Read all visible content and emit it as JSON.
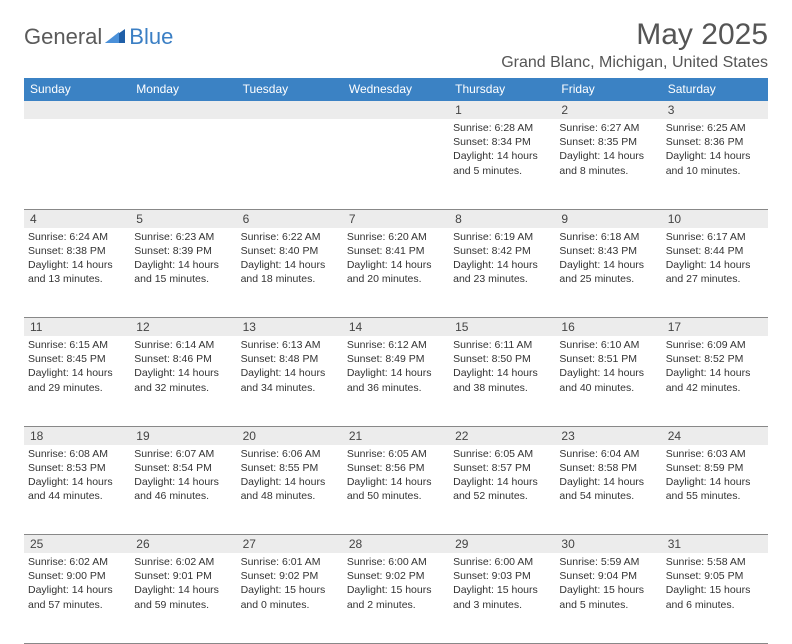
{
  "logo": {
    "part1": "General",
    "part2": "Blue"
  },
  "title": "May 2025",
  "location": "Grand Blanc, Michigan, United States",
  "colors": {
    "header_bg": "#3b82c4",
    "header_text": "#ffffff",
    "daynum_bg": "#ececec",
    "border": "#888888",
    "title_color": "#555555",
    "logo_gray": "#5a5a5a",
    "logo_blue": "#3b7fc4"
  },
  "weekdays": [
    "Sunday",
    "Monday",
    "Tuesday",
    "Wednesday",
    "Thursday",
    "Friday",
    "Saturday"
  ],
  "weeks": [
    {
      "nums": [
        "",
        "",
        "",
        "",
        "1",
        "2",
        "3"
      ],
      "cells": [
        "",
        "",
        "",
        "",
        "Sunrise: 6:28 AM\nSunset: 8:34 PM\nDaylight: 14 hours and 5 minutes.",
        "Sunrise: 6:27 AM\nSunset: 8:35 PM\nDaylight: 14 hours and 8 minutes.",
        "Sunrise: 6:25 AM\nSunset: 8:36 PM\nDaylight: 14 hours and 10 minutes."
      ]
    },
    {
      "nums": [
        "4",
        "5",
        "6",
        "7",
        "8",
        "9",
        "10"
      ],
      "cells": [
        "Sunrise: 6:24 AM\nSunset: 8:38 PM\nDaylight: 14 hours and 13 minutes.",
        "Sunrise: 6:23 AM\nSunset: 8:39 PM\nDaylight: 14 hours and 15 minutes.",
        "Sunrise: 6:22 AM\nSunset: 8:40 PM\nDaylight: 14 hours and 18 minutes.",
        "Sunrise: 6:20 AM\nSunset: 8:41 PM\nDaylight: 14 hours and 20 minutes.",
        "Sunrise: 6:19 AM\nSunset: 8:42 PM\nDaylight: 14 hours and 23 minutes.",
        "Sunrise: 6:18 AM\nSunset: 8:43 PM\nDaylight: 14 hours and 25 minutes.",
        "Sunrise: 6:17 AM\nSunset: 8:44 PM\nDaylight: 14 hours and 27 minutes."
      ]
    },
    {
      "nums": [
        "11",
        "12",
        "13",
        "14",
        "15",
        "16",
        "17"
      ],
      "cells": [
        "Sunrise: 6:15 AM\nSunset: 8:45 PM\nDaylight: 14 hours and 29 minutes.",
        "Sunrise: 6:14 AM\nSunset: 8:46 PM\nDaylight: 14 hours and 32 minutes.",
        "Sunrise: 6:13 AM\nSunset: 8:48 PM\nDaylight: 14 hours and 34 minutes.",
        "Sunrise: 6:12 AM\nSunset: 8:49 PM\nDaylight: 14 hours and 36 minutes.",
        "Sunrise: 6:11 AM\nSunset: 8:50 PM\nDaylight: 14 hours and 38 minutes.",
        "Sunrise: 6:10 AM\nSunset: 8:51 PM\nDaylight: 14 hours and 40 minutes.",
        "Sunrise: 6:09 AM\nSunset: 8:52 PM\nDaylight: 14 hours and 42 minutes."
      ]
    },
    {
      "nums": [
        "18",
        "19",
        "20",
        "21",
        "22",
        "23",
        "24"
      ],
      "cells": [
        "Sunrise: 6:08 AM\nSunset: 8:53 PM\nDaylight: 14 hours and 44 minutes.",
        "Sunrise: 6:07 AM\nSunset: 8:54 PM\nDaylight: 14 hours and 46 minutes.",
        "Sunrise: 6:06 AM\nSunset: 8:55 PM\nDaylight: 14 hours and 48 minutes.",
        "Sunrise: 6:05 AM\nSunset: 8:56 PM\nDaylight: 14 hours and 50 minutes.",
        "Sunrise: 6:05 AM\nSunset: 8:57 PM\nDaylight: 14 hours and 52 minutes.",
        "Sunrise: 6:04 AM\nSunset: 8:58 PM\nDaylight: 14 hours and 54 minutes.",
        "Sunrise: 6:03 AM\nSunset: 8:59 PM\nDaylight: 14 hours and 55 minutes."
      ]
    },
    {
      "nums": [
        "25",
        "26",
        "27",
        "28",
        "29",
        "30",
        "31"
      ],
      "cells": [
        "Sunrise: 6:02 AM\nSunset: 9:00 PM\nDaylight: 14 hours and 57 minutes.",
        "Sunrise: 6:02 AM\nSunset: 9:01 PM\nDaylight: 14 hours and 59 minutes.",
        "Sunrise: 6:01 AM\nSunset: 9:02 PM\nDaylight: 15 hours and 0 minutes.",
        "Sunrise: 6:00 AM\nSunset: 9:02 PM\nDaylight: 15 hours and 2 minutes.",
        "Sunrise: 6:00 AM\nSunset: 9:03 PM\nDaylight: 15 hours and 3 minutes.",
        "Sunrise: 5:59 AM\nSunset: 9:04 PM\nDaylight: 15 hours and 5 minutes.",
        "Sunrise: 5:58 AM\nSunset: 9:05 PM\nDaylight: 15 hours and 6 minutes."
      ]
    }
  ]
}
